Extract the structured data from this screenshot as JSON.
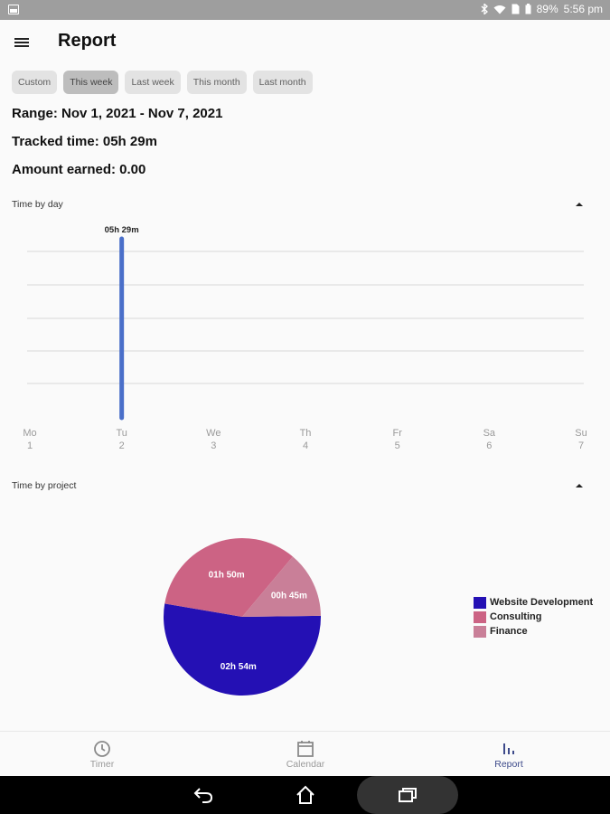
{
  "status_bar": {
    "battery": "89%",
    "time": "5:56 pm"
  },
  "header": {
    "title": "Report"
  },
  "range_chips": [
    {
      "label": "Custom",
      "active": false
    },
    {
      "label": "This week",
      "active": true
    },
    {
      "label": "Last week",
      "active": false
    },
    {
      "label": "This month",
      "active": false
    },
    {
      "label": "Last month",
      "active": false
    }
  ],
  "summary": {
    "range": "Range: Nov 1, 2021 - Nov 7, 2021",
    "tracked": "Tracked time: 05h 29m",
    "earned": "Amount earned: 0.00"
  },
  "sections": {
    "time_by_day": "Time by day",
    "time_by_project": "Time by project"
  },
  "chart_data": [
    {
      "type": "bar",
      "categories": [
        "Mo",
        "Tu",
        "We",
        "Th",
        "Fr",
        "Sa",
        "Su"
      ],
      "day_numbers": [
        "1",
        "2",
        "3",
        "4",
        "5",
        "6",
        "7"
      ],
      "values": [
        0,
        329,
        0,
        0,
        0,
        0,
        0
      ],
      "value_unit": "minutes",
      "data_labels": [
        "",
        "05h 29m",
        "",
        "",
        "",
        "",
        ""
      ],
      "color": "#4a6fc9",
      "grid": true
    },
    {
      "type": "pie",
      "categories": [
        "Website Development",
        "Consulting",
        "Finance"
      ],
      "values": [
        174,
        110,
        45
      ],
      "value_unit": "minutes",
      "labels": [
        "02h 54m",
        "01h 50m",
        "00h 45m"
      ],
      "colors": [
        "#2410b4",
        "#cc6384",
        "#c97f98"
      ],
      "legend": "right"
    }
  ],
  "bottom_nav": [
    {
      "label": "Timer",
      "icon": "clock-icon",
      "active": false
    },
    {
      "label": "Calendar",
      "icon": "calendar-icon",
      "active": false
    },
    {
      "label": "Report",
      "icon": "bar-chart-icon",
      "active": true
    }
  ],
  "colors": {
    "accent": "#3d4a8a",
    "status_bar": "#9e9e9e"
  }
}
